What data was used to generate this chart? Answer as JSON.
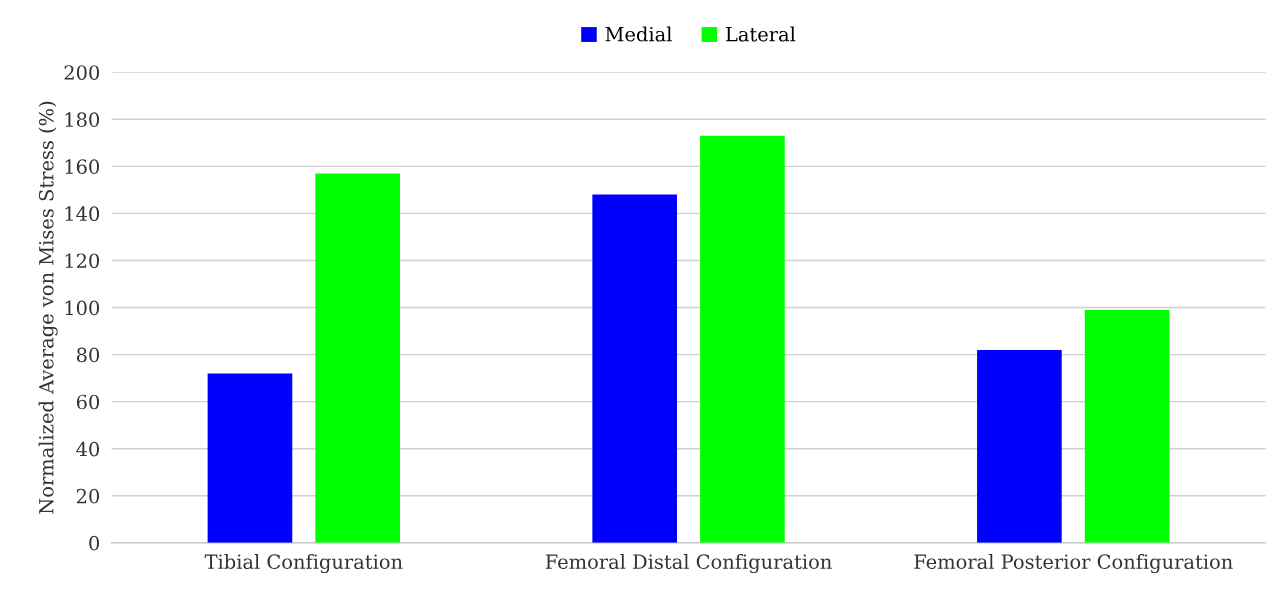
{
  "chart_data": {
    "type": "bar",
    "ylabel": "Normalized Average von Mises Stress (%)",
    "categories": [
      "Tibial Configuration",
      "Femoral Distal Configuration",
      "Femoral Posterior Configuration"
    ],
    "series": [
      {
        "name": "Medial",
        "color": "#0000ff",
        "values": [
          72,
          148,
          82
        ]
      },
      {
        "name": "Lateral",
        "color": "#00ff00",
        "values": [
          157,
          173,
          99
        ]
      }
    ],
    "ylim": [
      0,
      200
    ],
    "yticks": [
      0,
      20,
      40,
      60,
      80,
      100,
      120,
      140,
      160,
      180,
      200
    ],
    "grid": "y",
    "legend": "top"
  }
}
